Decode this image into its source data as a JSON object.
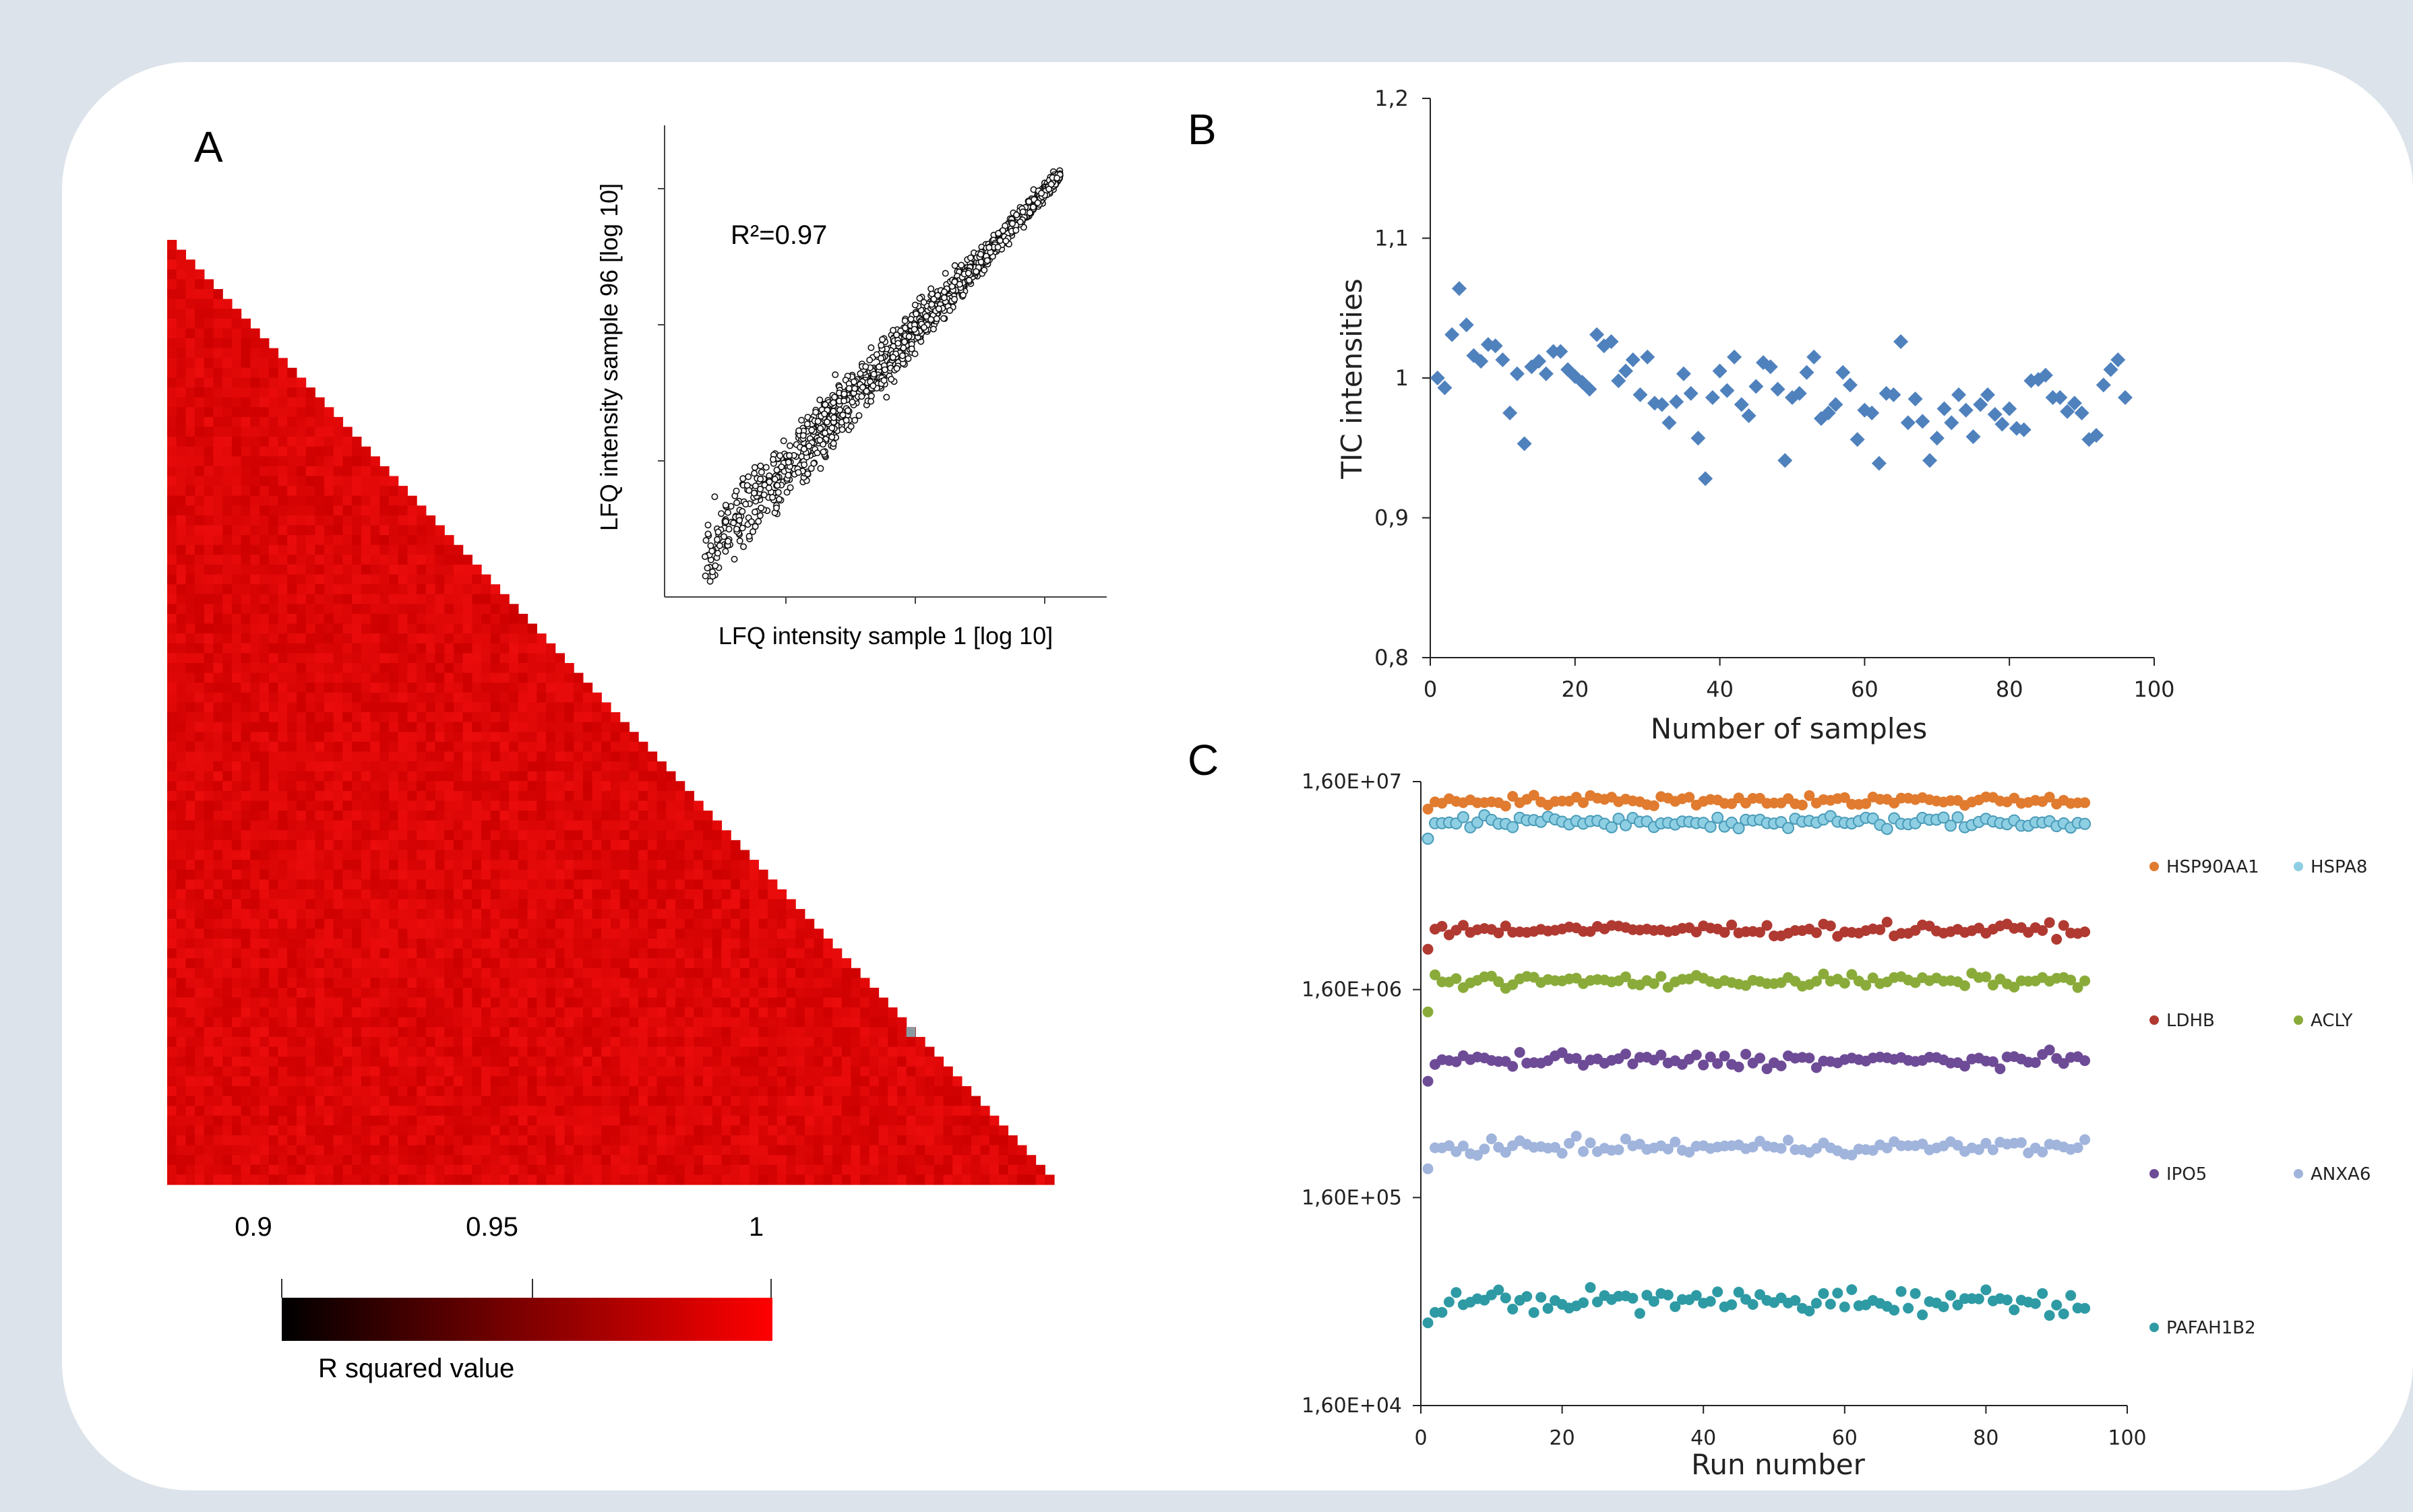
{
  "panel_labels": {
    "a": "A",
    "b": "B",
    "c": "C"
  },
  "colors": {
    "heatmap_red": "#e21111",
    "tic_marker": "#4f81bd",
    "HSP90AA1": "#e07b2f",
    "HSPA8": "#8ecfe3",
    "LDHB": "#b03a32",
    "ACLY": "#8aab3a",
    "IPO5": "#6e4b96",
    "ANXA6": "#a0b4dc",
    "PAFAH1B2": "#2e9aa4"
  },
  "chart_data": [
    {
      "type": "heatmap",
      "panel": "A",
      "n_samples": 96,
      "shape": "lower-triangle",
      "colorbar": {
        "label": "R squared value",
        "ticks": [
          "0.9",
          "0.95",
          "1"
        ],
        "range": [
          0.9,
          1.0
        ],
        "colors": [
          "#000000",
          "#ff0000"
        ]
      }
    },
    {
      "type": "scatter",
      "panel": "A-inset",
      "annotation": "R²=0.97",
      "xlabel": "LFQ intensity sample 1 [log 10]",
      "ylabel": "LFQ intensity sample 96 [log 10]",
      "xlim": [
        4.5,
        10.2
      ],
      "ylim": [
        4.5,
        10.2
      ]
    },
    {
      "type": "scatter",
      "panel": "B",
      "xlabel": "Number of samples",
      "ylabel": "TIC intensities",
      "xlim": [
        0,
        100
      ],
      "ylim": [
        0.8,
        1.2
      ],
      "xticks": [
        "0",
        "20",
        "40",
        "60",
        "80",
        "100"
      ],
      "yticks": [
        "0,8",
        "0,9",
        "1",
        "1,1",
        "1,2"
      ],
      "x": [
        1,
        2,
        3,
        4,
        5,
        6,
        7,
        8,
        9,
        10,
        11,
        12,
        13,
        14,
        15,
        16,
        17,
        18,
        19,
        20,
        21,
        22,
        23,
        24,
        25,
        26,
        27,
        28,
        29,
        30,
        31,
        32,
        33,
        34,
        35,
        36,
        37,
        38,
        39,
        40,
        41,
        42,
        43,
        44,
        45,
        46,
        47,
        48,
        49,
        50,
        51,
        52,
        53,
        54,
        55,
        56,
        57,
        58,
        59,
        60,
        61,
        62,
        63,
        64,
        65,
        66,
        67,
        68,
        69,
        70,
        71,
        72,
        73,
        74,
        75,
        76,
        77,
        78,
        79,
        80,
        81,
        82,
        83,
        84,
        85,
        86,
        87,
        88,
        89,
        90,
        91,
        92,
        93,
        94,
        95,
        96
      ],
      "values": [
        1.0,
        0.993,
        1.031,
        1.064,
        1.038,
        1.016,
        1.012,
        1.024,
        1.023,
        1.013,
        0.975,
        1.003,
        0.953,
        1.008,
        1.012,
        1.003,
        1.019,
        1.019,
        1.006,
        1.001,
        0.997,
        0.992,
        1.031,
        1.023,
        1.026,
        0.998,
        1.005,
        1.013,
        0.988,
        1.015,
        0.982,
        0.981,
        0.968,
        0.983,
        1.003,
        0.989,
        0.957,
        0.928,
        0.986,
        1.005,
        0.991,
        1.015,
        0.981,
        0.973,
        0.994,
        1.011,
        1.008,
        0.992,
        0.941,
        0.986,
        0.989,
        1.004,
        1.015,
        0.971,
        0.975,
        0.981,
        1.004,
        0.995,
        0.956,
        0.977,
        0.975,
        0.939,
        0.989,
        0.988,
        1.026,
        0.968,
        0.985,
        0.969,
        0.941,
        0.957,
        0.978,
        0.968,
        0.988,
        0.977,
        0.958,
        0.981,
        0.988,
        0.974,
        0.967,
        0.978,
        0.964,
        0.963,
        0.998,
        0.999,
        1.002,
        0.986,
        0.986,
        0.976,
        0.982,
        0.975,
        0.956,
        0.959,
        0.995,
        1.006,
        1.013,
        0.986
      ]
    },
    {
      "type": "scatter",
      "panel": "C",
      "xlabel": "Run number",
      "ylabel": "",
      "log_y": true,
      "xlim": [
        0,
        100
      ],
      "ylim": [
        16000,
        16000000
      ],
      "xticks": [
        "0",
        "20",
        "40",
        "60",
        "80",
        "100"
      ],
      "yticks": [
        "1,60E+04",
        "1,60E+05",
        "1,60E+06",
        "1,60E+07"
      ],
      "legend": [
        "HSP90AA1",
        "HSPA8",
        "LDHB",
        "ACLY",
        "IPO5",
        "ANXA6",
        "PAFAH1B2"
      ],
      "legend_placement": "right",
      "n_runs": 94,
      "series": [
        {
          "name": "HSP90AA1",
          "level": 13000000,
          "spread": 0.025,
          "first": 11800000
        },
        {
          "name": "HSPA8",
          "level": 10200000,
          "spread": 0.03,
          "first": 8500000
        },
        {
          "name": "LDHB",
          "level": 3100000,
          "spread": 0.03,
          "first": 2500000
        },
        {
          "name": "ACLY",
          "level": 1760000,
          "spread": 0.03,
          "first": 1250000
        },
        {
          "name": "IPO5",
          "level": 730000,
          "spread": 0.035,
          "first": 580000
        },
        {
          "name": "ANXA6",
          "level": 280000,
          "spread": 0.035,
          "first": 220000
        },
        {
          "name": "PAFAH1B2",
          "level": 51000,
          "spread": 0.06,
          "first": 40000
        }
      ]
    }
  ]
}
